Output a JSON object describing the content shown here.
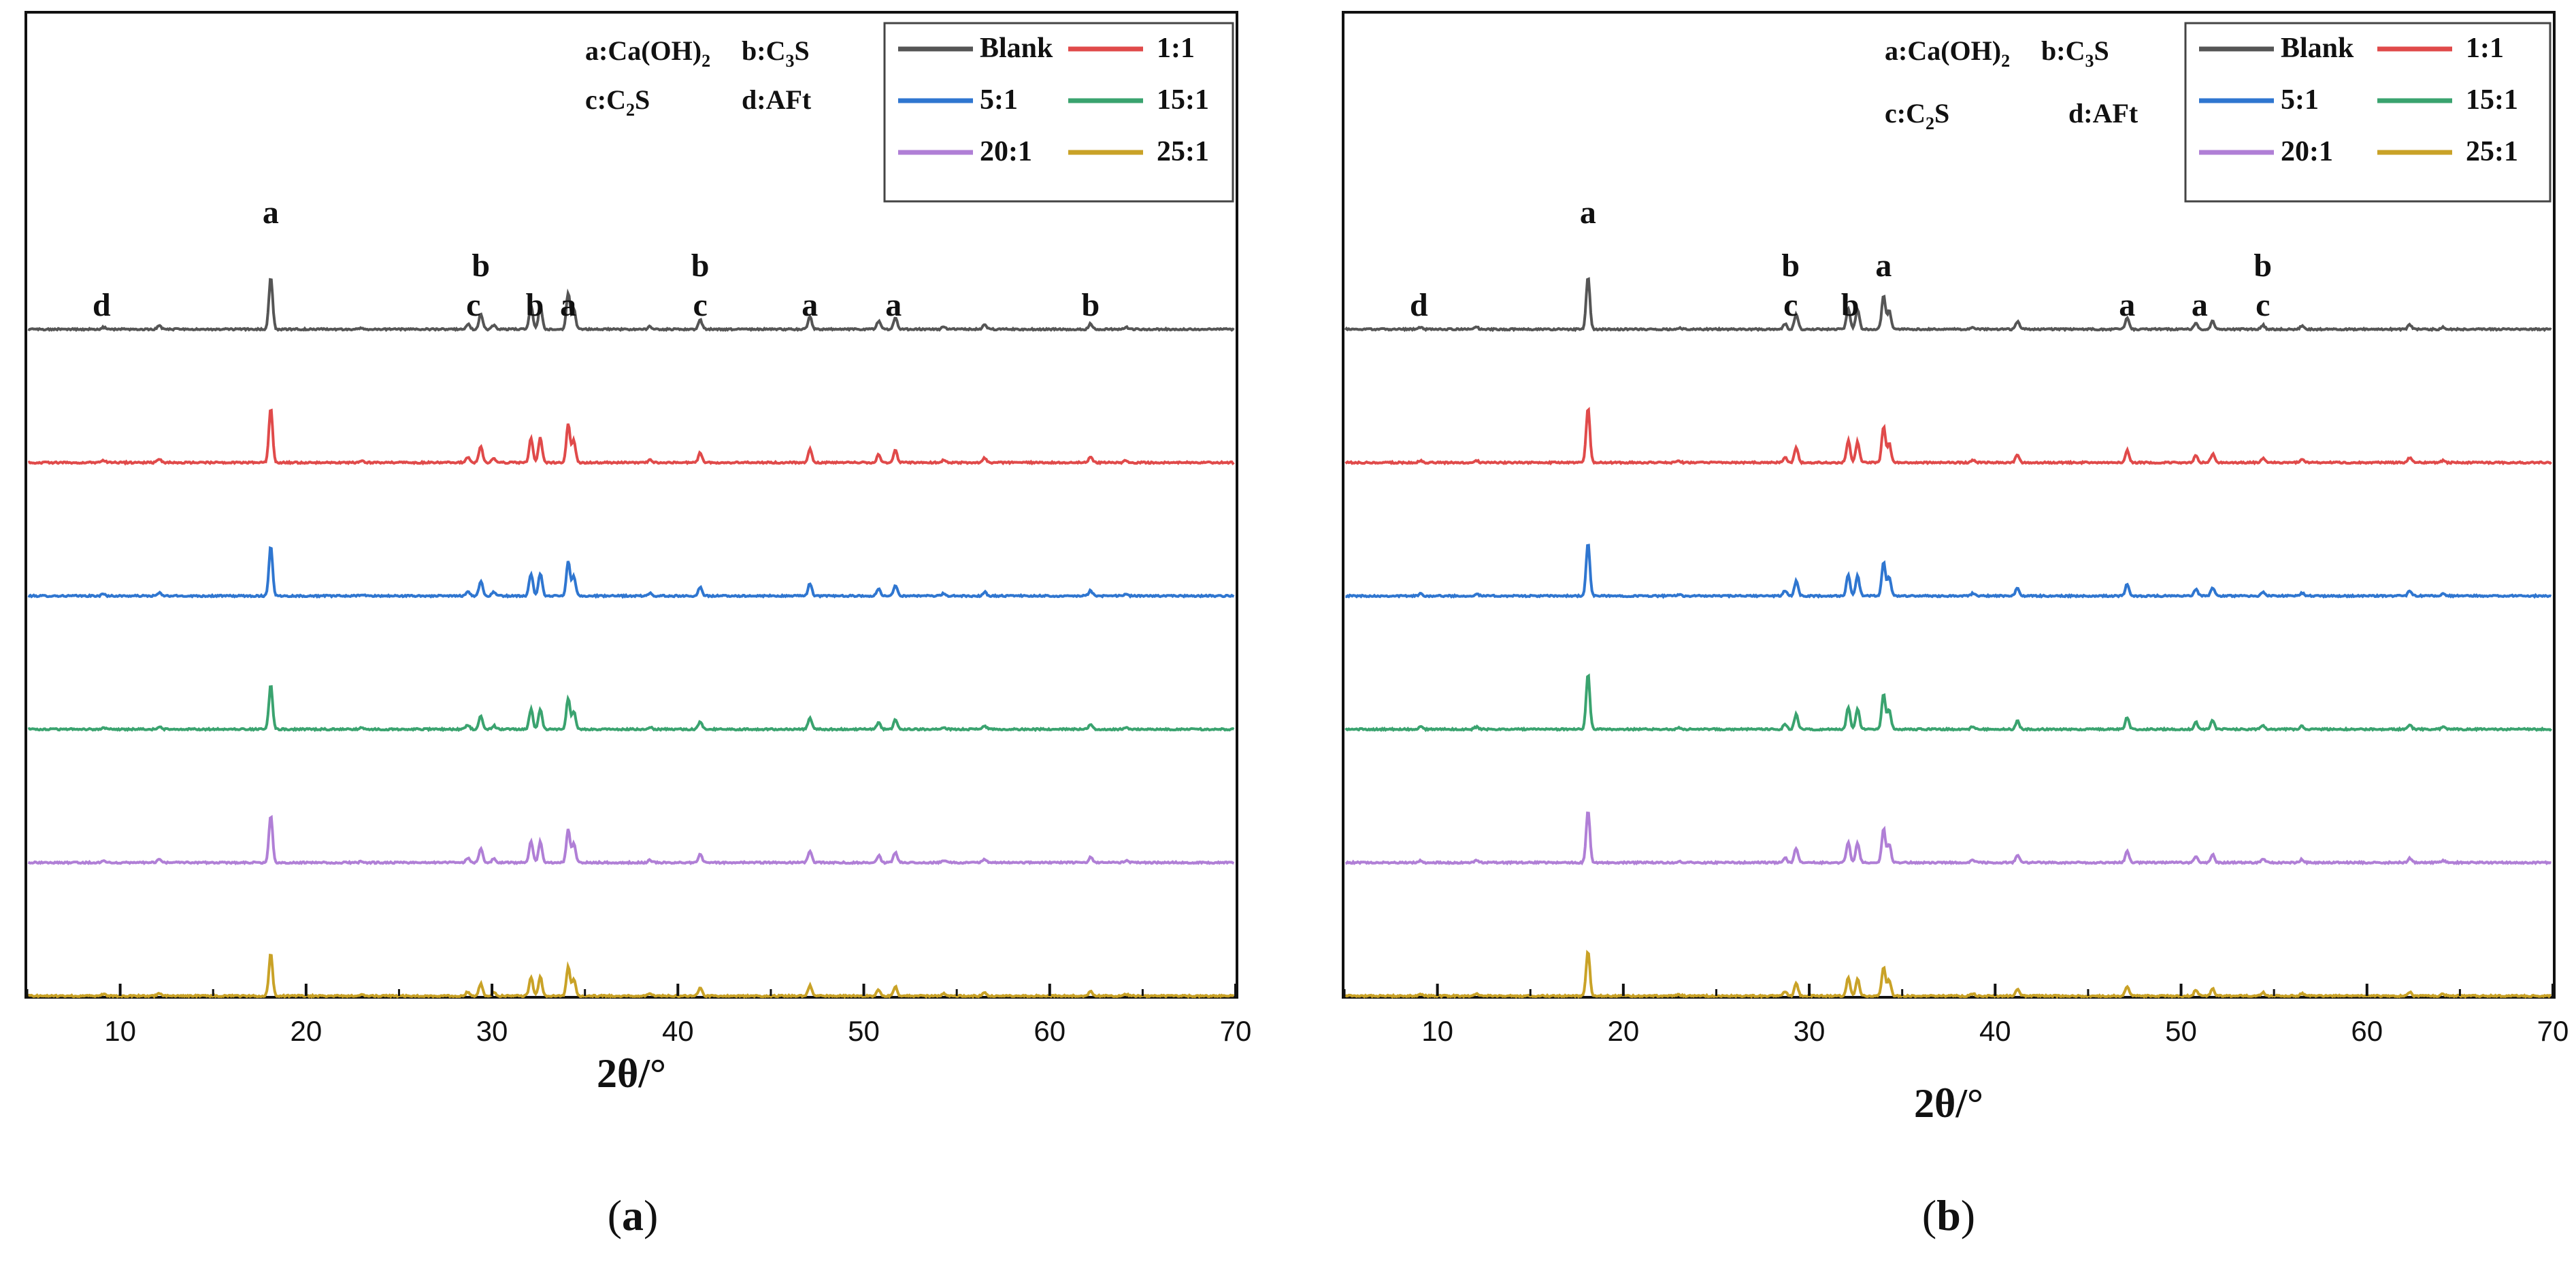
{
  "chart_data": [
    {
      "type": "line",
      "panel": "a",
      "caption": "(a)",
      "xlabel": "2θ/°",
      "ylabel": "",
      "xlim": [
        5,
        70
      ],
      "xticks": [
        10,
        20,
        30,
        40,
        50,
        60,
        70
      ],
      "xtick_labels": [
        "10",
        "20",
        "30",
        "40",
        "50",
        "60",
        "70"
      ],
      "phase_key": {
        "a": "Ca(OH)",
        "a_sub": "2",
        "b": "C",
        "b_sub": "3",
        "b_tail": "S",
        "c": "C",
        "c_sub": "2",
        "c_tail": "S",
        "d": "AFt",
        "a_prefix": "a:",
        "b_prefix": "b:",
        "c_prefix": "c:",
        "d_prefix": "d:"
      },
      "legend": [
        "Blank",
        "1:1",
        "5:1",
        "15:1",
        "20:1",
        "25:1"
      ],
      "peaks": [
        {
          "two_theta": 9.1,
          "height": 0.04
        },
        {
          "two_theta": 12.1,
          "height": 0.06
        },
        {
          "two_theta": 18.1,
          "height": 1.0
        },
        {
          "two_theta": 23.0,
          "height": 0.03
        },
        {
          "two_theta": 28.7,
          "height": 0.1
        },
        {
          "two_theta": 29.4,
          "height": 0.3
        },
        {
          "two_theta": 30.1,
          "height": 0.08
        },
        {
          "two_theta": 32.1,
          "height": 0.45
        },
        {
          "two_theta": 32.6,
          "height": 0.45
        },
        {
          "two_theta": 34.1,
          "height": 0.7
        },
        {
          "two_theta": 34.4,
          "height": 0.4
        },
        {
          "two_theta": 38.5,
          "height": 0.05
        },
        {
          "two_theta": 41.2,
          "height": 0.18
        },
        {
          "two_theta": 47.1,
          "height": 0.25
        },
        {
          "two_theta": 50.8,
          "height": 0.15
        },
        {
          "two_theta": 51.7,
          "height": 0.22
        },
        {
          "two_theta": 54.3,
          "height": 0.05
        },
        {
          "two_theta": 56.5,
          "height": 0.08
        },
        {
          "two_theta": 62.2,
          "height": 0.11
        },
        {
          "two_theta": 64.1,
          "height": 0.04
        }
      ],
      "series": [
        {
          "name": "Blank",
          "color": "#555555",
          "scale": 1.0
        },
        {
          "name": "1:1",
          "color": "#e04a4a",
          "scale": 1.05
        },
        {
          "name": "5:1",
          "color": "#2f76d0",
          "scale": 0.95
        },
        {
          "name": "15:1",
          "color": "#3aa36f",
          "scale": 0.85
        },
        {
          "name": "20:1",
          "color": "#b07fd6",
          "scale": 0.9
        },
        {
          "name": "25:1",
          "color": "#c9a227",
          "scale": 0.8
        }
      ],
      "annotations": [
        {
          "text": "d",
          "x": 9.0,
          "level": 1
        },
        {
          "text": "a",
          "x": 18.1,
          "level": 3
        },
        {
          "text": "c",
          "x": 29.0,
          "level": 1
        },
        {
          "text": "b",
          "x": 29.4,
          "level": 2
        },
        {
          "text": "b",
          "x": 32.3,
          "level": 1
        },
        {
          "text": "a",
          "x": 34.1,
          "level": 1
        },
        {
          "text": "c",
          "x": 41.2,
          "level": 1
        },
        {
          "text": "b",
          "x": 41.2,
          "level": 2
        },
        {
          "text": "a",
          "x": 47.1,
          "level": 1
        },
        {
          "text": "a",
          "x": 51.6,
          "level": 1
        },
        {
          "text": "b",
          "x": 62.2,
          "level": 1
        }
      ]
    },
    {
      "type": "line",
      "panel": "b",
      "caption": "(b)",
      "xlabel": "2θ/°",
      "ylabel": "",
      "xlim": [
        5,
        70
      ],
      "xticks": [
        10,
        20,
        30,
        40,
        50,
        60,
        70
      ],
      "xtick_labels": [
        "10",
        "20",
        "30",
        "40",
        "50",
        "60",
        "70"
      ],
      "phase_key": {
        "a": "Ca(OH)",
        "a_sub": "2",
        "b": "C",
        "b_sub": "3",
        "b_tail": "S",
        "c": "C",
        "c_sub": "2",
        "c_tail": "S",
        "d": "AFt",
        "a_prefix": "a:",
        "b_prefix": "b:",
        "c_prefix": "c:",
        "d_prefix": "d:"
      },
      "legend": [
        "Blank",
        "1:1",
        "5:1",
        "15:1",
        "20:1",
        "25:1"
      ],
      "peaks": [
        {
          "two_theta": 9.1,
          "height": 0.04
        },
        {
          "two_theta": 12.1,
          "height": 0.04
        },
        {
          "two_theta": 18.1,
          "height": 1.0
        },
        {
          "two_theta": 23.0,
          "height": 0.03
        },
        {
          "two_theta": 28.7,
          "height": 0.1
        },
        {
          "two_theta": 29.3,
          "height": 0.28
        },
        {
          "two_theta": 32.1,
          "height": 0.4
        },
        {
          "two_theta": 32.6,
          "height": 0.38
        },
        {
          "two_theta": 34.0,
          "height": 0.65
        },
        {
          "two_theta": 34.3,
          "height": 0.35
        },
        {
          "two_theta": 38.8,
          "height": 0.05
        },
        {
          "two_theta": 41.2,
          "height": 0.15
        },
        {
          "two_theta": 47.1,
          "height": 0.22
        },
        {
          "two_theta": 50.8,
          "height": 0.13
        },
        {
          "two_theta": 51.7,
          "height": 0.16
        },
        {
          "two_theta": 54.4,
          "height": 0.08
        },
        {
          "two_theta": 56.5,
          "height": 0.06
        },
        {
          "two_theta": 62.3,
          "height": 0.09
        },
        {
          "two_theta": 64.1,
          "height": 0.04
        }
      ],
      "series": [
        {
          "name": "Blank",
          "color": "#555555",
          "scale": 1.0
        },
        {
          "name": "1:1",
          "color": "#e04a4a",
          "scale": 1.05
        },
        {
          "name": "5:1",
          "color": "#2f76d0",
          "scale": 1.0
        },
        {
          "name": "15:1",
          "color": "#3aa36f",
          "scale": 1.05
        },
        {
          "name": "20:1",
          "color": "#b07fd6",
          "scale": 1.0
        },
        {
          "name": "25:1",
          "color": "#c9a227",
          "scale": 0.85
        }
      ],
      "annotations": [
        {
          "text": "d",
          "x": 9.0,
          "level": 1
        },
        {
          "text": "a",
          "x": 18.1,
          "level": 3
        },
        {
          "text": "c",
          "x": 29.0,
          "level": 1
        },
        {
          "text": "b",
          "x": 29.0,
          "level": 2
        },
        {
          "text": "b",
          "x": 32.2,
          "level": 1
        },
        {
          "text": "a",
          "x": 34.0,
          "level": 2
        },
        {
          "text": "a",
          "x": 47.1,
          "level": 1
        },
        {
          "text": "a",
          "x": 51.0,
          "level": 1
        },
        {
          "text": "c",
          "x": 54.4,
          "level": 1
        },
        {
          "text": "b",
          "x": 54.4,
          "level": 2
        }
      ]
    }
  ]
}
